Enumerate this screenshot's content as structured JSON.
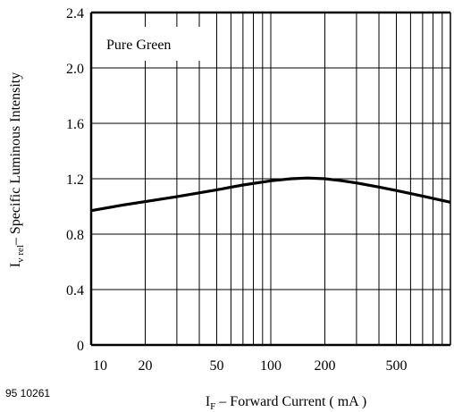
{
  "chart_data": {
    "type": "line",
    "title": "",
    "x_scale": "log",
    "xlim": [
      10,
      1000
    ],
    "ylim": [
      0,
      2.4
    ],
    "grid": true,
    "x_ticks": [
      10,
      20,
      50,
      100,
      200,
      500
    ],
    "x_tick_labels": [
      "10",
      "20",
      "50",
      "100",
      "200",
      "500"
    ],
    "y_ticks": [
      0,
      0.4,
      0.8,
      1.2,
      1.6,
      2.0,
      2.4
    ],
    "y_tick_labels": [
      "0",
      "0.4",
      "0.8",
      "1.2",
      "1.6",
      "2.0",
      "2.4"
    ],
    "xlabel": {
      "main": "I",
      "sub": "F",
      "rest": " – Forward Current ( mA )"
    },
    "ylabel": {
      "main": "I",
      "sub": "v rel",
      "rest": "– Specific Luminous Intensity"
    },
    "legend": {
      "text": "Pure Green",
      "placement": "top-left"
    },
    "series": [
      {
        "name": "Pure Green",
        "x": [
          10,
          15,
          20,
          30,
          50,
          70,
          100,
          130,
          160,
          200,
          250,
          300,
          400,
          500,
          700,
          1000
        ],
        "y": [
          0.97,
          1.01,
          1.035,
          1.07,
          1.12,
          1.155,
          1.185,
          1.2,
          1.205,
          1.2,
          1.185,
          1.17,
          1.14,
          1.115,
          1.075,
          1.03
        ]
      }
    ]
  },
  "figure_code": "95 10261"
}
